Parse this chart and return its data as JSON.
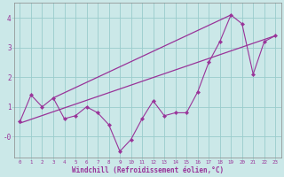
{
  "xlabel": "Windchill (Refroidissement éolien,°C)",
  "bg_color": "#cbe8e8",
  "line_color": "#993399",
  "grid_color": "#99cccc",
  "x_data": [
    0,
    1,
    2,
    3,
    4,
    5,
    6,
    7,
    8,
    9,
    10,
    11,
    12,
    13,
    14,
    15,
    16,
    17,
    18,
    19,
    20,
    21,
    22,
    23
  ],
  "y_data": [
    0.5,
    1.4,
    1.0,
    1.3,
    0.6,
    0.7,
    1.0,
    0.8,
    0.4,
    -0.5,
    -0.1,
    0.6,
    1.2,
    0.7,
    0.8,
    0.8,
    1.5,
    2.5,
    3.2,
    4.1,
    3.8,
    2.1,
    3.2,
    3.4
  ],
  "trend1_x": [
    0,
    23
  ],
  "trend1_y": [
    0.45,
    3.4
  ],
  "trend2_x": [
    3,
    19
  ],
  "trend2_y": [
    1.3,
    4.1
  ],
  "ylim": [
    -0.7,
    4.5
  ],
  "xlim": [
    -0.5,
    23.5
  ]
}
